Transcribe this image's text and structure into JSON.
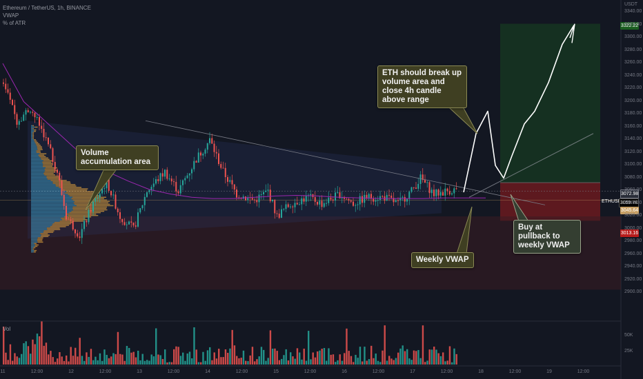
{
  "header": {
    "title": "Ethereum / TetherUS, 1h, BINANCE",
    "indicators": [
      "VWAP",
      "% of ATR"
    ]
  },
  "volume_pane": {
    "label": "Vol",
    "ticks": [
      "50K",
      "25K"
    ]
  },
  "axis": {
    "currency": "USDT",
    "y_ticks": [
      "3340.00",
      "3320.00",
      "3300.00",
      "3280.00",
      "3260.00",
      "3240.00",
      "3220.00",
      "3200.00",
      "3180.00",
      "3160.00",
      "3140.00",
      "3120.00",
      "3100.00",
      "3080.00",
      "3060.00",
      "3040.00",
      "3020.00",
      "3000.00",
      "2980.00",
      "2960.00",
      "2940.00",
      "2920.00",
      "2900.00"
    ],
    "x_ticks": [
      "11",
      "12:00",
      "12",
      "12:00",
      "13",
      "12:00",
      "14",
      "12:00",
      "15",
      "12:00",
      "16",
      "12:00",
      "17",
      "12:00",
      "18",
      "12:00",
      "19",
      "12:00"
    ]
  },
  "price_labels": {
    "target": "3322.22",
    "entry": "3072.98",
    "symbol": "ETHUSDT",
    "last": "3059.78",
    "vwap": "3045.64",
    "stop": "3013.16"
  },
  "annotations": {
    "breakout": "ETH should break up volume area and close 4h candle above range",
    "volume_area": "Volume accumulation area",
    "weekly_vwap": "Weekly VWAP",
    "buy": "Buy at pullback to weekly VWAP"
  },
  "colors": {
    "background": "#131722",
    "up": "#26a69a",
    "down": "#ef5350",
    "vwap": "#9c27b0",
    "target_zone": "#1b5e20",
    "stop_zone": "#b71c1c",
    "callout_bg": "#3f3f22"
  },
  "chart_data": {
    "type": "candlestick",
    "symbol": "ETHUSDT",
    "timeframe": "1h",
    "y_range": [
      2890,
      3345
    ],
    "last_price": 3059.78,
    "entry": 3072.98,
    "target": 3322.22,
    "stop": 3013.16,
    "weekly_vwap": 3045.64,
    "vwap_series": [
      3260,
      3200,
      3170,
      3140,
      3110,
      3090,
      3075,
      3062,
      3055,
      3050,
      3048,
      3048,
      3050,
      3052,
      3053,
      3052,
      3050,
      3049,
      3048,
      3048,
      3048,
      3049,
      3049,
      3049
    ],
    "projection": [
      3058,
      3150,
      3185,
      3100,
      3080,
      3115,
      3165,
      3185,
      3230,
      3290,
      3320
    ]
  }
}
